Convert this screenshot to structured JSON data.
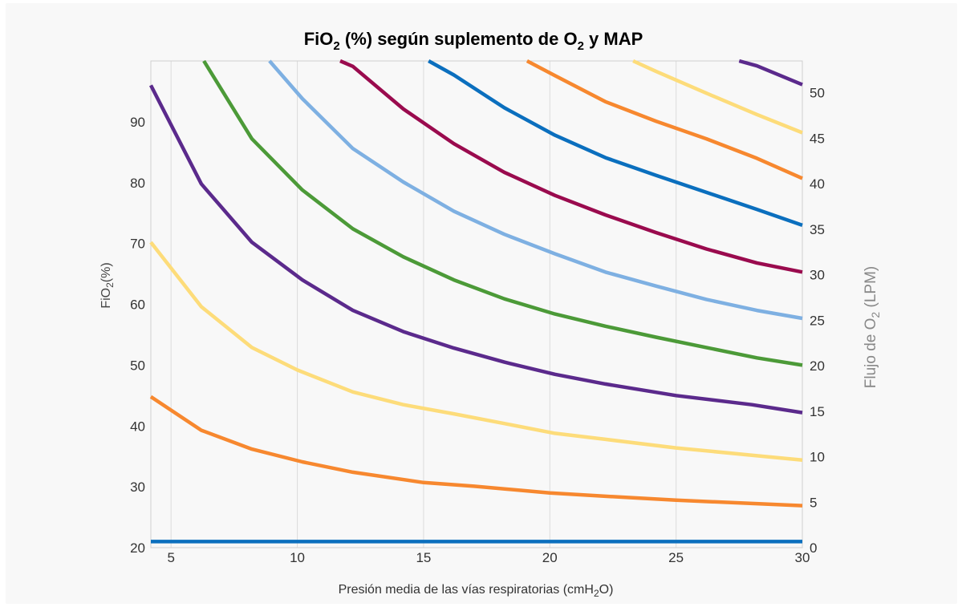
{
  "chart_data": {
    "type": "line",
    "title": {
      "pre": "FiO",
      "sub": "2",
      "post": " (%) según suplemento de O",
      "sub2": "2",
      "post2": " y MAP"
    },
    "xlabel": {
      "pre": "Presión media de las vías respiratorias (cmH",
      "sub": "2",
      "post": "O)"
    },
    "ylabel_left": {
      "pre": "FiO",
      "sub": "2",
      "post": "(%)"
    },
    "ylabel_right": {
      "pre": "Flujo de O",
      "sub": "2",
      "post": " (LPM)"
    },
    "xlim": [
      4.2,
      30
    ],
    "ylim": [
      20,
      100
    ],
    "ylim_right": [
      0,
      53.5
    ],
    "x_ticks": [
      "5",
      "10",
      "15",
      "20",
      "25",
      "30"
    ],
    "y_ticks_left": [
      "20",
      "30",
      "40",
      "50",
      "60",
      "70",
      "80",
      "90"
    ],
    "y_ticks_right": [
      "0",
      "5",
      "10",
      "15",
      "20",
      "25",
      "30",
      "35",
      "40",
      "45",
      "50"
    ],
    "grid": "vertical",
    "series": [
      {
        "color": "#0b6fbe",
        "values": [
          [
            4.2,
            21
          ],
          [
            30,
            21
          ]
        ]
      },
      {
        "color": "#f7882f",
        "values": [
          [
            4.2,
            44.8
          ],
          [
            6.2,
            39.3
          ],
          [
            8.2,
            36.2
          ],
          [
            10.2,
            34.1
          ],
          [
            12.2,
            32.4
          ],
          [
            15,
            30.7
          ],
          [
            17,
            30.1
          ],
          [
            20,
            29
          ],
          [
            22,
            28.5
          ],
          [
            25,
            27.8
          ],
          [
            30,
            26.9
          ]
        ]
      },
      {
        "color": "#fddc7a",
        "values": [
          [
            4.2,
            70.2
          ],
          [
            6.2,
            59.6
          ],
          [
            8.2,
            52.9
          ],
          [
            10,
            49.2
          ],
          [
            12.2,
            45.6
          ],
          [
            14.2,
            43.5
          ],
          [
            16.2,
            42
          ],
          [
            18.2,
            40.4
          ],
          [
            20.2,
            38.8
          ],
          [
            22.2,
            37.8
          ],
          [
            25,
            36.4
          ],
          [
            28,
            35.2
          ],
          [
            30,
            34.4
          ]
        ]
      },
      {
        "color": "#5b2a8c",
        "values": [
          [
            4.2,
            96
          ],
          [
            6.2,
            79.8
          ],
          [
            8.2,
            70.2
          ],
          [
            10.2,
            64
          ],
          [
            12.2,
            59
          ],
          [
            14.2,
            55.5
          ],
          [
            16.2,
            52.8
          ],
          [
            18.2,
            50.5
          ],
          [
            20.2,
            48.5
          ],
          [
            22.2,
            46.9
          ],
          [
            25,
            45
          ],
          [
            28,
            43.5
          ],
          [
            30,
            42.2
          ]
        ]
      },
      {
        "color": "#4c9a38",
        "values": [
          [
            6.3,
            100
          ],
          [
            8.2,
            87.2
          ],
          [
            10.2,
            78.8
          ],
          [
            12.2,
            72.4
          ],
          [
            14.2,
            67.8
          ],
          [
            16.2,
            64
          ],
          [
            18.2,
            60.9
          ],
          [
            20.2,
            58.4
          ],
          [
            22.2,
            56.4
          ],
          [
            24.2,
            54.6
          ],
          [
            26.2,
            52.9
          ],
          [
            28.2,
            51.2
          ],
          [
            30,
            50
          ]
        ]
      },
      {
        "color": "#7eb0e2",
        "values": [
          [
            8.9,
            100
          ],
          [
            10.2,
            93.8
          ],
          [
            12.2,
            85.6
          ],
          [
            14.2,
            80.1
          ],
          [
            16.2,
            75.3
          ],
          [
            18.2,
            71.5
          ],
          [
            20.2,
            68.3
          ],
          [
            22.2,
            65.3
          ],
          [
            24.2,
            63
          ],
          [
            26.2,
            60.8
          ],
          [
            28.2,
            59
          ],
          [
            30,
            57.7
          ]
        ]
      },
      {
        "color": "#9a0b4e",
        "values": [
          [
            11.7,
            100
          ],
          [
            12.2,
            99.1
          ],
          [
            14.2,
            92.1
          ],
          [
            16.2,
            86.4
          ],
          [
            18.2,
            81.7
          ],
          [
            20.2,
            77.9
          ],
          [
            22.2,
            74.7
          ],
          [
            24.2,
            71.8
          ],
          [
            26.2,
            69.1
          ],
          [
            28.2,
            66.8
          ],
          [
            30,
            65.3
          ]
        ]
      },
      {
        "color": "#0b6fbe",
        "values": [
          [
            15.2,
            100
          ],
          [
            16.2,
            97.7
          ],
          [
            18.2,
            92.3
          ],
          [
            20.2,
            87.8
          ],
          [
            22.2,
            84.1
          ],
          [
            24.2,
            81.2
          ],
          [
            26.2,
            78.4
          ],
          [
            28.2,
            75.6
          ],
          [
            30,
            73
          ]
        ]
      },
      {
        "color": "#f7882f",
        "values": [
          [
            19.1,
            100
          ],
          [
            20.2,
            97.6
          ],
          [
            22.2,
            93.3
          ],
          [
            24.2,
            90.1
          ],
          [
            26.2,
            87.2
          ],
          [
            28.2,
            84
          ],
          [
            30,
            80.7
          ]
        ]
      },
      {
        "color": "#fddc7a",
        "values": [
          [
            23.3,
            100
          ],
          [
            24.2,
            98.3
          ],
          [
            26.2,
            94.7
          ],
          [
            28.2,
            91.2
          ],
          [
            30,
            88.2
          ]
        ]
      },
      {
        "color": "#5b2a8c",
        "values": [
          [
            27.5,
            100
          ],
          [
            28.2,
            99.2
          ],
          [
            30,
            96.1
          ]
        ]
      }
    ]
  }
}
